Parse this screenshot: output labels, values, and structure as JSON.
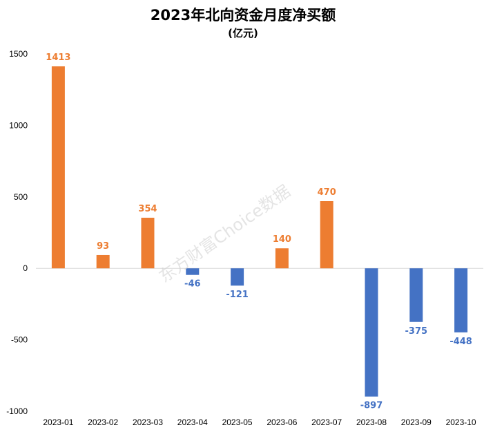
{
  "chart_data": {
    "type": "bar",
    "title": "2023年北向资金月度净买额",
    "subtitle": "(亿元)",
    "categories": [
      "2023-01",
      "2023-02",
      "2023-03",
      "2023-04",
      "2023-05",
      "2023-06",
      "2023-07",
      "2023-08",
      "2023-09",
      "2023-10"
    ],
    "values": [
      1413,
      93,
      354,
      -46,
      -121,
      140,
      470,
      -897,
      -375,
      -448
    ],
    "data_labels": [
      "1413",
      "93",
      "354",
      "-46",
      "-121",
      "140",
      "470",
      "-897",
      "-375",
      "-448"
    ],
    "ylim": [
      -1000,
      1500
    ],
    "yticks": [
      1500,
      1000,
      500,
      0,
      -500,
      -1000
    ],
    "ytick_labels": [
      "1500",
      "1000",
      "500",
      "0",
      "-500",
      "-1000"
    ],
    "grid": false,
    "legend": "none",
    "watermark": "东方财富Choice数据",
    "colors": {
      "positive": "#ED7D31",
      "negative": "#4472C4",
      "zero_line": "#d9d9d9"
    }
  }
}
